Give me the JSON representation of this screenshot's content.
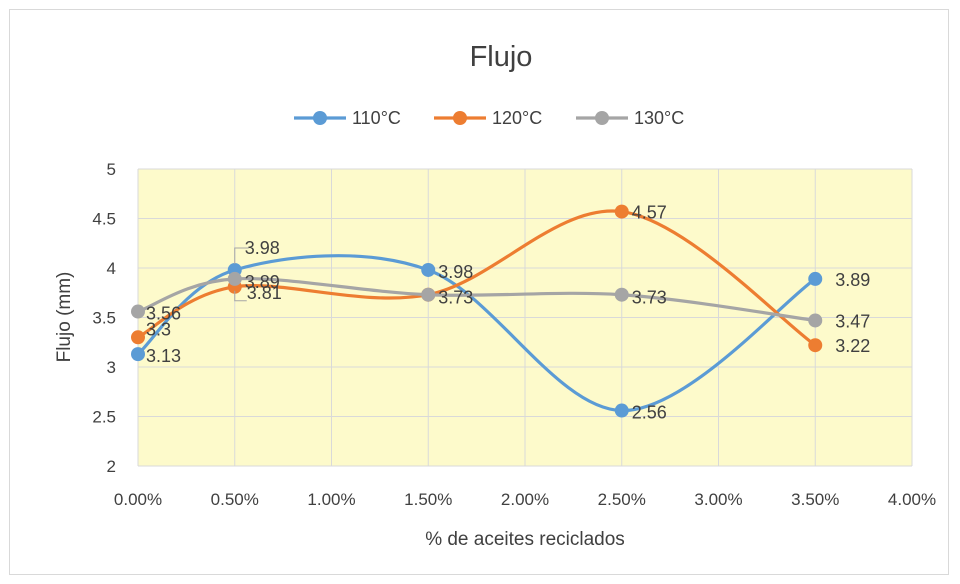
{
  "chart_data": {
    "type": "line",
    "title": "Flujo",
    "xlabel": "% de aceites reciclados",
    "ylabel": "Flujo (mm)",
    "x": [
      0.0,
      0.5,
      1.5,
      2.5,
      3.5
    ],
    "xlim": [
      0.0,
      4.0
    ],
    "ylim": [
      2,
      5
    ],
    "x_ticks": [
      "0.00%",
      "0.50%",
      "1.00%",
      "1.50%",
      "2.00%",
      "2.50%",
      "3.00%",
      "3.50%",
      "4.00%"
    ],
    "y_ticks": [
      "2",
      "2.5",
      "3",
      "3.5",
      "4",
      "4.5",
      "5"
    ],
    "grid": true,
    "smoothed": true,
    "legend_position": "top",
    "plot_background": "#fdfacb",
    "series": [
      {
        "name": "110°C",
        "color": "#5b9bd5",
        "values": [
          3.13,
          3.98,
          3.98,
          2.56,
          3.89
        ],
        "labels": [
          "3.13",
          "3.98",
          "3.98",
          "2.56",
          "3.89"
        ]
      },
      {
        "name": "120°C",
        "color": "#ed7d31",
        "values": [
          3.3,
          3.81,
          3.73,
          4.57,
          3.22
        ],
        "labels": [
          "3.3",
          "3.81",
          "",
          "4.57",
          "3.22"
        ]
      },
      {
        "name": "130°C",
        "color": "#a5a5a5",
        "values": [
          3.56,
          3.89,
          3.73,
          3.73,
          3.47
        ],
        "labels": [
          "3.56",
          "3.89",
          "3.73",
          "3.73",
          "3.47"
        ]
      }
    ]
  }
}
